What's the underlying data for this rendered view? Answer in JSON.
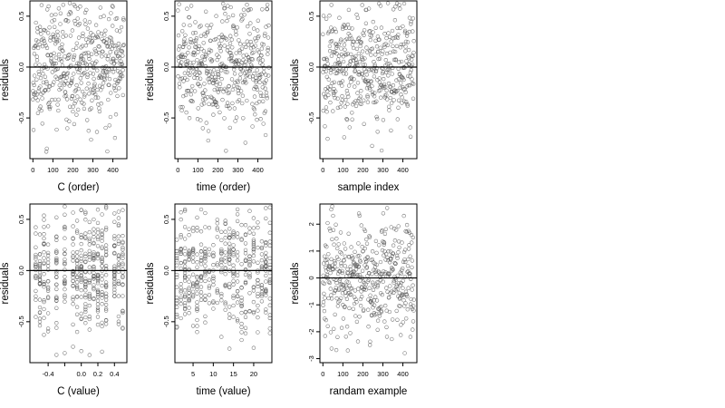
{
  "chart_data": [
    {
      "type": "scatter",
      "xlabel": "C (order)",
      "ylabel": "residuals",
      "xlim": [
        -15,
        470
      ],
      "ylim": [
        -0.9,
        0.65
      ],
      "xticks": [
        0,
        100,
        200,
        300,
        400
      ],
      "xtick_labels": [
        "0",
        "100",
        "200",
        "300",
        "400"
      ],
      "yticks": [
        0.5,
        0.0,
        -0.5
      ],
      "ytick_labels": [
        "0.5",
        "0.0",
        "-0.5"
      ],
      "hline": 0,
      "grid": false,
      "point_gen": {
        "kind": "uniform",
        "n": 450,
        "x0": 0,
        "x1": 455,
        "sd": 0.28,
        "seed": 11
      }
    },
    {
      "type": "scatter",
      "xlabel": "time (order)",
      "ylabel": "residuals",
      "xlim": [
        -15,
        470
      ],
      "ylim": [
        -0.9,
        0.65
      ],
      "xticks": [
        0,
        100,
        200,
        300,
        400
      ],
      "xtick_labels": [
        "0",
        "100",
        "200",
        "300",
        "400"
      ],
      "yticks": [
        0.5,
        0.0,
        -0.5
      ],
      "ytick_labels": [
        "0.5",
        "0.0",
        "-0.5"
      ],
      "hline": 0,
      "grid": false,
      "point_gen": {
        "kind": "uniform",
        "n": 450,
        "x0": 0,
        "x1": 455,
        "sd": 0.28,
        "seed": 23
      }
    },
    {
      "type": "scatter",
      "xlabel": "sample index",
      "ylabel": "residuals",
      "xlim": [
        -15,
        470
      ],
      "ylim": [
        -0.9,
        0.65
      ],
      "xticks": [
        0,
        100,
        200,
        300,
        400
      ],
      "xtick_labels": [
        "0",
        "100",
        "200",
        "300",
        "400"
      ],
      "yticks": [
        0.5,
        0.0,
        -0.5
      ],
      "ytick_labels": [
        "0.5",
        "0.0",
        "-0.5"
      ],
      "hline": 0,
      "grid": false,
      "point_gen": {
        "kind": "uniform",
        "n": 450,
        "x0": 0,
        "x1": 455,
        "sd": 0.28,
        "seed": 37
      }
    },
    {
      "type": "scatter",
      "xlabel": "C (value)",
      "ylabel": "residuals",
      "xlim": [
        -0.62,
        0.55
      ],
      "ylim": [
        -0.9,
        0.65
      ],
      "xticks": [
        -0.4,
        -0.2,
        0.0,
        0.2,
        0.4
      ],
      "xtick_labels": [
        "-0.4",
        "",
        "0.0",
        "0.2",
        "0.4"
      ],
      "yticks": [
        0.5,
        0.0,
        -0.5
      ],
      "ytick_labels": [
        "0.5",
        "0.0",
        "-0.5"
      ],
      "hline": 0,
      "grid": false,
      "point_gen": {
        "kind": "discrete",
        "n": 450,
        "levels": [
          -0.55,
          -0.5,
          -0.45,
          -0.4,
          -0.3,
          -0.2,
          -0.1,
          -0.05,
          0.0,
          0.05,
          0.1,
          0.15,
          0.2,
          0.25,
          0.3,
          0.4,
          0.45,
          0.5
        ],
        "sd": 0.28,
        "seed": 41
      }
    },
    {
      "type": "scatter",
      "xlabel": "time (value)",
      "ylabel": "residuals",
      "xlim": [
        0.5,
        24.5
      ],
      "ylim": [
        -0.9,
        0.65
      ],
      "xticks": [
        5,
        10,
        15,
        20
      ],
      "xtick_labels": [
        "5",
        "10",
        "15",
        "20"
      ],
      "yticks": [
        0.5,
        0.0,
        -0.5
      ],
      "ytick_labels": [
        "0.5",
        "0.0",
        "-0.5"
      ],
      "hline": 0,
      "grid": false,
      "point_gen": {
        "kind": "discrete",
        "n": 450,
        "levels": [
          1,
          2,
          3,
          4,
          5,
          6,
          7,
          8,
          9,
          10,
          11,
          12,
          13,
          14,
          15,
          16,
          17,
          18,
          19,
          20,
          21,
          22,
          23,
          24
        ],
        "sd": 0.28,
        "seed": 53
      }
    },
    {
      "type": "scatter",
      "xlabel": "randam example",
      "ylabel": "residuals",
      "xlim": [
        -15,
        470
      ],
      "ylim": [
        -3.15,
        2.75
      ],
      "xticks": [
        0,
        100,
        200,
        300,
        400
      ],
      "xtick_labels": [
        "0",
        "100",
        "200",
        "300",
        "400"
      ],
      "yticks": [
        2,
        1,
        0,
        -1,
        -2,
        -3
      ],
      "ytick_labels": [
        "2",
        "1",
        "0",
        "-1",
        "-2",
        "-3"
      ],
      "hline": 0,
      "grid": false,
      "point_gen": {
        "kind": "uniform",
        "n": 450,
        "x0": 0,
        "x1": 455,
        "sd": 1.0,
        "seed": 67
      }
    }
  ]
}
